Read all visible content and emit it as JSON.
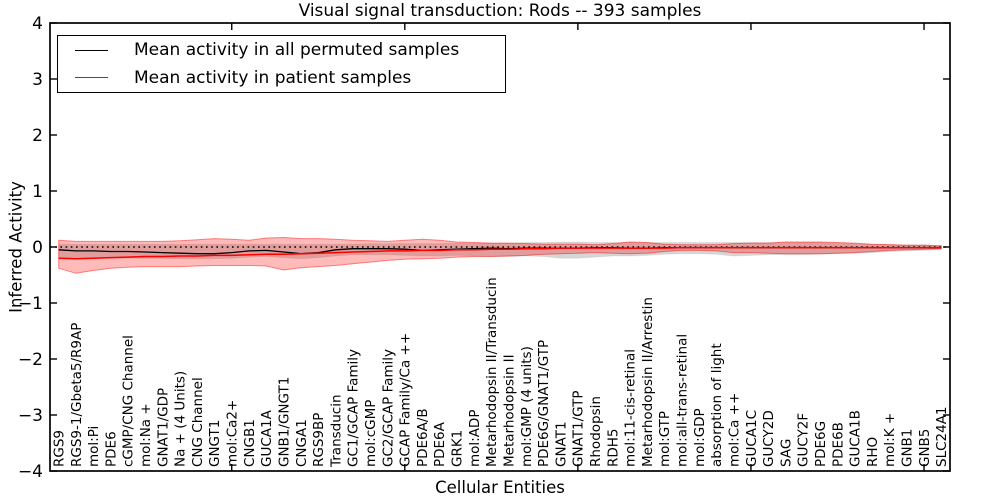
{
  "figure": {
    "title": "Visual signal transduction: Rods -- 393 samples",
    "xlabel": "Cellular Entities",
    "ylabel": "Inferred Activity"
  },
  "legend": {
    "items": [
      {
        "label": "Mean activity in all permuted samples",
        "color": "#000000"
      },
      {
        "label": "Mean activity in patient samples",
        "color": "#ff0000"
      }
    ]
  },
  "chart_data": {
    "type": "line",
    "title": "Visual signal transduction: Rods -- 393 samples",
    "xlabel": "Cellular Entities",
    "ylabel": "Inferred Activity",
    "ylim": [
      -4,
      4
    ],
    "yticks": [
      -4,
      -3,
      -2,
      -1,
      0,
      1,
      2,
      3,
      4
    ],
    "xtick_major_indices": [
      10,
      20,
      30,
      40,
      50
    ],
    "grid": false,
    "legend_position": "upper left",
    "zero_reference_line": {
      "y": 0,
      "style": "dotted",
      "color": "#000000"
    },
    "categories": [
      "RGS9",
      "RGS9-1/Gbeta5/R9AP",
      "mol:Pi",
      "PDE6",
      "cGMP/CNG Channel",
      "mol:Na +",
      "GNAT1/GDP",
      "Na + (4 Units)",
      "CNG Channel",
      "GNGT1",
      "mol:Ca2+",
      "CNGB1",
      "GUCA1A",
      "GNB1/GNGT1",
      "CNGA1",
      "RGS9BP",
      "Transducin",
      "GC1/GCAP Family",
      "mol:cGMP",
      "GC2/GCAP Family",
      "GCAP Family/Ca ++",
      "PDE6A/B",
      "PDE6A",
      "GRK1",
      "mol:ADP",
      "Metarhodopsin II/Transducin",
      "Metarhodopsin II",
      "mol:GMP (4 units)",
      "PDE6G/GNAT1/GTP",
      "GNAT1",
      "GNAT1/GTP",
      "Rhodopsin",
      "RDH5",
      "mol:11-cis-retinal",
      "Metarhodopsin II/Arrestin",
      "mol:GTP",
      "mol:all-trans-retinal",
      "mol:GDP",
      "absorption of light",
      "mol:Ca ++",
      "GUCA1C",
      "GUCY2D",
      "SAG",
      "GUCY2F",
      "PDE6G",
      "PDE6B",
      "GUCA1B",
      "RHO",
      "mol:K +",
      "GNB1",
      "GNB5",
      "SLC24A1"
    ],
    "series": [
      {
        "name": "Mean activity in all permuted samples",
        "color": "#000000",
        "line_width": 1.3,
        "band_color": "#808080",
        "band_opacity": 0.32,
        "values": [
          -0.05,
          -0.07,
          -0.07,
          -0.08,
          -0.08,
          -0.09,
          -0.1,
          -0.11,
          -0.12,
          -0.12,
          -0.1,
          -0.07,
          -0.06,
          -0.09,
          -0.12,
          -0.1,
          -0.05,
          -0.03,
          -0.03,
          -0.03,
          -0.04,
          -0.06,
          -0.05,
          -0.04,
          -0.03,
          -0.02,
          -0.03,
          -0.02,
          -0.02,
          -0.02,
          -0.02,
          -0.01,
          -0.01,
          -0.02,
          -0.02,
          -0.01,
          -0.01,
          -0.01,
          -0.01,
          -0.01,
          -0.01,
          -0.01,
          -0.01,
          -0.01,
          -0.01,
          -0.01,
          -0.01,
          -0.01,
          -0.01,
          -0.01,
          -0.01,
          -0.01
        ],
        "band_upper": [
          0.05,
          0.05,
          0.05,
          0.05,
          0.05,
          0.05,
          0.05,
          0.05,
          0.05,
          0.05,
          0.05,
          0.05,
          0.05,
          0.05,
          0.05,
          0.05,
          0.05,
          0.05,
          0.06,
          0.06,
          0.06,
          0.06,
          0.06,
          0.07,
          0.07,
          0.07,
          0.07,
          0.08,
          0.08,
          0.09,
          0.09,
          0.08,
          0.08,
          0.08,
          0.08,
          0.08,
          0.08,
          0.08,
          0.08,
          0.08,
          0.08,
          0.08,
          0.08,
          0.08,
          0.08,
          0.07,
          0.06,
          0.05,
          0.05,
          0.04,
          0.04,
          0.03
        ],
        "band_lower": [
          -0.2,
          -0.2,
          -0.2,
          -0.2,
          -0.2,
          -0.2,
          -0.2,
          -0.21,
          -0.21,
          -0.21,
          -0.2,
          -0.18,
          -0.17,
          -0.19,
          -0.21,
          -0.19,
          -0.16,
          -0.14,
          -0.14,
          -0.14,
          -0.15,
          -0.16,
          -0.16,
          -0.15,
          -0.16,
          -0.17,
          -0.17,
          -0.16,
          -0.17,
          -0.2,
          -0.2,
          -0.18,
          -0.16,
          -0.16,
          -0.15,
          -0.13,
          -0.12,
          -0.12,
          -0.13,
          -0.16,
          -0.15,
          -0.14,
          -0.14,
          -0.14,
          -0.13,
          -0.12,
          -0.11,
          -0.1,
          -0.08,
          -0.07,
          -0.06,
          -0.05
        ]
      },
      {
        "name": "Mean activity in patient samples",
        "color": "#ff0000",
        "line_width": 1.5,
        "band_color": "#ff0000",
        "band_opacity": 0.27,
        "values": [
          -0.2,
          -0.21,
          -0.2,
          -0.19,
          -0.18,
          -0.17,
          -0.17,
          -0.16,
          -0.16,
          -0.15,
          -0.15,
          -0.14,
          -0.13,
          -0.13,
          -0.12,
          -0.11,
          -0.1,
          -0.09,
          -0.08,
          -0.07,
          -0.07,
          -0.06,
          -0.06,
          -0.05,
          -0.05,
          -0.04,
          -0.04,
          -0.03,
          -0.03,
          -0.02,
          -0.02,
          -0.02,
          -0.02,
          -0.02,
          -0.02,
          -0.02,
          -0.01,
          -0.01,
          -0.01,
          -0.01,
          -0.01,
          -0.01,
          -0.01,
          -0.01,
          -0.01,
          -0.01,
          -0.01,
          -0.01,
          -0.01,
          -0.01,
          -0.01,
          -0.01
        ],
        "band_upper": [
          0.12,
          0.1,
          0.1,
          0.1,
          0.1,
          0.1,
          0.1,
          0.11,
          0.13,
          0.15,
          0.14,
          0.12,
          0.16,
          0.17,
          0.15,
          0.15,
          0.14,
          0.12,
          0.11,
          0.1,
          0.12,
          0.14,
          0.12,
          0.09,
          0.08,
          0.07,
          0.07,
          0.06,
          0.05,
          0.05,
          0.05,
          0.04,
          0.06,
          0.09,
          0.08,
          0.05,
          0.04,
          0.04,
          0.04,
          0.06,
          0.07,
          0.07,
          0.09,
          0.09,
          0.09,
          0.08,
          0.07,
          0.05,
          0.04,
          0.03,
          0.03,
          0.02
        ],
        "band_lower": [
          -0.38,
          -0.47,
          -0.42,
          -0.38,
          -0.36,
          -0.35,
          -0.35,
          -0.35,
          -0.34,
          -0.33,
          -0.33,
          -0.33,
          -0.34,
          -0.41,
          -0.37,
          -0.35,
          -0.33,
          -0.3,
          -0.27,
          -0.24,
          -0.22,
          -0.21,
          -0.2,
          -0.18,
          -0.17,
          -0.17,
          -0.16,
          -0.15,
          -0.13,
          -0.12,
          -0.11,
          -0.1,
          -0.11,
          -0.12,
          -0.11,
          -0.08,
          -0.06,
          -0.06,
          -0.07,
          -0.1,
          -0.1,
          -0.11,
          -0.12,
          -0.12,
          -0.12,
          -0.11,
          -0.1,
          -0.08,
          -0.06,
          -0.05,
          -0.04,
          -0.03
        ]
      }
    ]
  }
}
